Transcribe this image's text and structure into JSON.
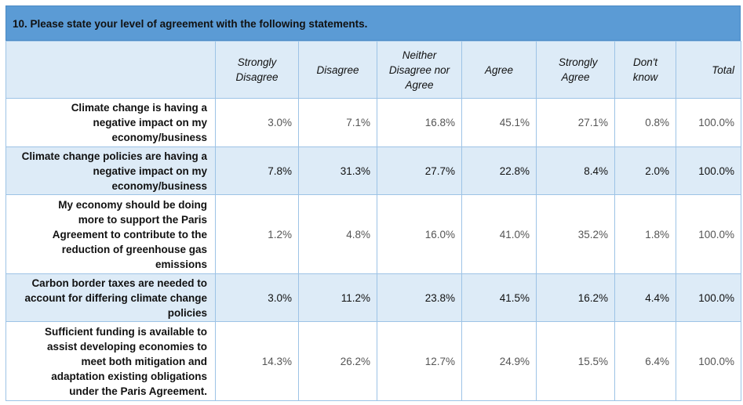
{
  "title": "10. Please state your level of agreement with the following statements.",
  "columns": [
    {
      "label": "Strongly Disagree"
    },
    {
      "label": "Disagree"
    },
    {
      "label": "Neither Disagree nor Agree"
    },
    {
      "label": "Agree"
    },
    {
      "label": "Strongly Agree"
    },
    {
      "label": "Don't know"
    },
    {
      "label": "Total"
    }
  ],
  "rows": [
    {
      "statement": "Climate change is having a negative impact on my economy/business",
      "values": [
        "3.0%",
        "7.1%",
        "16.8%",
        "45.1%",
        "27.1%",
        "0.8%",
        "100.0%"
      ]
    },
    {
      "statement": "Climate change policies are having a negative impact on my economy/business",
      "values": [
        "7.8%",
        "31.3%",
        "27.7%",
        "22.8%",
        "8.4%",
        "2.0%",
        "100.0%"
      ]
    },
    {
      "statement": "My economy should be doing more to support the Paris Agreement to contribute to the reduction of greenhouse gas emissions",
      "values": [
        "1.2%",
        "4.8%",
        "16.0%",
        "41.0%",
        "35.2%",
        "1.8%",
        "100.0%"
      ]
    },
    {
      "statement": "Carbon border taxes are needed to account for differing climate change policies",
      "values": [
        "3.0%",
        "11.2%",
        "23.8%",
        "41.5%",
        "16.2%",
        "4.4%",
        "100.0%"
      ]
    },
    {
      "statement": "Sufficient funding is available to assist developing economies to meet both mitigation and adaptation existing obligations under the Paris Agreement.",
      "values": [
        "14.3%",
        "26.2%",
        "12.7%",
        "24.9%",
        "15.5%",
        "6.4%",
        "100.0%"
      ]
    }
  ]
}
